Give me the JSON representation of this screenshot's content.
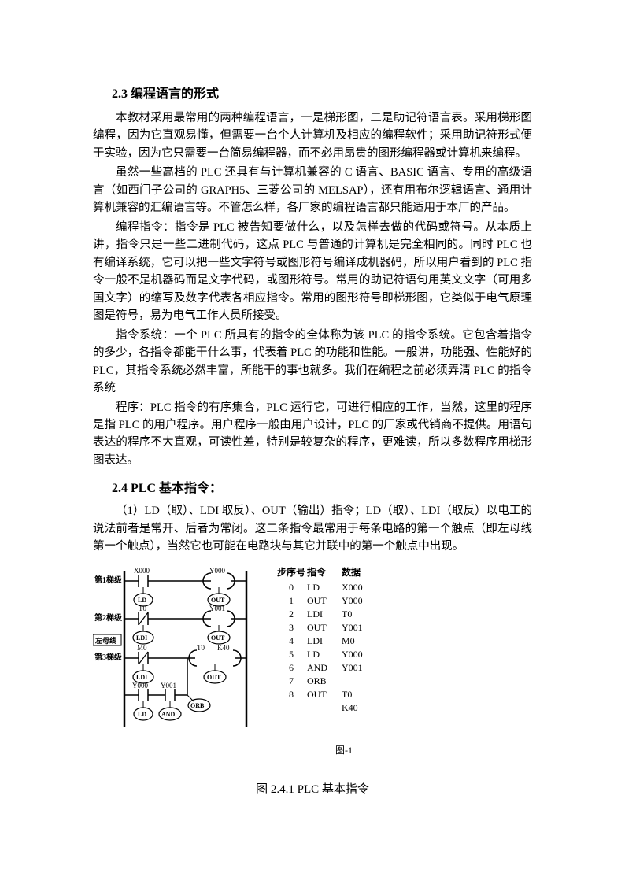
{
  "section1": {
    "heading": "2.3 编程语言的形式",
    "paragraphs": [
      "本教材采用最常用的两种编程语言，一是梯形图，二是助记符语言表。采用梯形图编程，因为它直观易懂，但需要一台个人计算机及相应的编程软件；采用助记符形式便于实验，因为它只需要一台简易编程器，而不必用昂贵的图形编程器或计算机来编程。",
      "虽然一些高档的 PLC 还具有与计算机兼容的 C 语言、BASIC 语言、专用的高级语言（如西门子公司的 GRAPH5、三菱公司的 MELSAP），还有用布尔逻辑语言、通用计算机兼容的汇编语言等。不管怎么样，各厂家的编程语言都只能适用于本厂的产品。",
      "编程指令：指令是 PLC 被告知要做什么，以及怎样去做的代码或符号。从本质上讲，指令只是一些二进制代码，这点 PLC 与普通的计算机是完全相同的。同时 PLC 也有编译系统，它可以把一些文字符号或图形符号编译成机器码，所以用户看到的 PLC 指令一般不是机器码而是文字代码，或图形符号。常用的助记符语句用英文文字（可用多国文字）的缩写及数字代表各相应指令。常用的图形符号即梯形图，它类似于电气原理图是符号，易为电气工作人员所接受。",
      "指令系统：一个 PLC 所具有的指令的全体称为该 PLC 的指令系统。它包含着指令的多少，各指令都能干什么事，代表着 PLC 的功能和性能。一般讲，功能强、性能好的 PLC，其指令系统必然丰富，所能干的事也就多。我们在编程之前必须弄清 PLC 的指令系统",
      "程序：PLC 指令的有序集合，PLC 运行它，可进行相应的工作，当然，这里的程序是指 PLC 的用户程序。用户程序一般由用户设计，PLC 的厂家或代销商不提供。用语句表达的程序不大直观，可读性差，特别是较复杂的程序，更难读，所以多数程序用梯形图表达。"
    ]
  },
  "section2": {
    "heading": "2.4 PLC 基本指令：",
    "paragraph": "（1）LD（取）、LDI 取反）、OUT（输出）指令；LD（取）、LDI（取反）以电工的说法前者是常开、后者为常闭。这二条指令最常用于每条电路的第一个触点（即左母线第一个触点），当然它也可能在电路块与其它并联中的第一个触点中出现。"
  },
  "diagram": {
    "rung_labels": [
      "第1梯级",
      "第2梯级",
      "第3梯级"
    ],
    "bus_label": "左母线",
    "contacts": {
      "x000": "X000",
      "y000": "Y000",
      "t0": "T0",
      "y001": "Y001",
      "m0": "M0",
      "k40": "K40"
    },
    "nodes": {
      "ld": "LD",
      "ldi": "LDI",
      "out": "OUT",
      "and": "AND",
      "orb": "ORB"
    },
    "table": {
      "headers": [
        "步序号",
        "指令",
        "数据"
      ],
      "rows": [
        [
          "0",
          "LD",
          "X000"
        ],
        [
          "1",
          "OUT",
          "Y000"
        ],
        [
          "2",
          "LDI",
          "T0"
        ],
        [
          "3",
          "OUT",
          "Y001"
        ],
        [
          "4",
          "LDI",
          "M0"
        ],
        [
          "5",
          "LD",
          "Y000"
        ],
        [
          "6",
          "AND",
          "Y001"
        ],
        [
          "7",
          "ORB",
          ""
        ],
        [
          "8",
          "OUT",
          "T0"
        ],
        [
          "",
          "",
          "K40"
        ]
      ]
    },
    "label": "图-1",
    "caption": "图 2.4.1 PLC 基本指令"
  },
  "colors": {
    "text": "#000000",
    "bg": "#ffffff",
    "line": "#000000"
  }
}
